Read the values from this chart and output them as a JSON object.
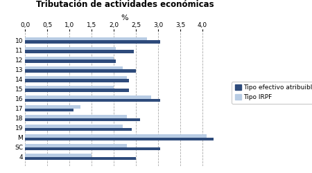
{
  "title": "Tributación de actividades económicas",
  "xlabel": "%",
  "categories": [
    "10",
    "11",
    "12",
    "13",
    "14",
    "15",
    "16",
    "17",
    "18",
    "19",
    "M",
    "SC",
    "4"
  ],
  "tipo_efectivo": [
    3.05,
    2.45,
    2.05,
    2.5,
    2.35,
    2.35,
    3.05,
    1.1,
    2.6,
    2.4,
    4.25,
    3.05,
    2.5
  ],
  "tipo_irpf": [
    2.75,
    2.05,
    2.0,
    2.2,
    2.3,
    2.0,
    2.85,
    1.25,
    2.3,
    2.2,
    4.1,
    2.3,
    1.5
  ],
  "color_efectivo": "#2E4B7B",
  "color_irpf": "#B8CCE4",
  "xlim": [
    0,
    4.5
  ],
  "xticks": [
    0.0,
    0.5,
    1.0,
    1.5,
    2.0,
    2.5,
    3.0,
    3.5,
    4.0
  ],
  "xtick_labels": [
    "0,0",
    "0,5",
    "1,0",
    "1,5",
    "2,0",
    "2,5",
    "3,0",
    "3,5",
    "4,0"
  ],
  "legend_labels": [
    "Tipo efectivo atribuible",
    "Tipo IRPF"
  ],
  "bar_height": 0.32,
  "figwidth": 4.5,
  "figheight": 2.5,
  "dpi": 100
}
